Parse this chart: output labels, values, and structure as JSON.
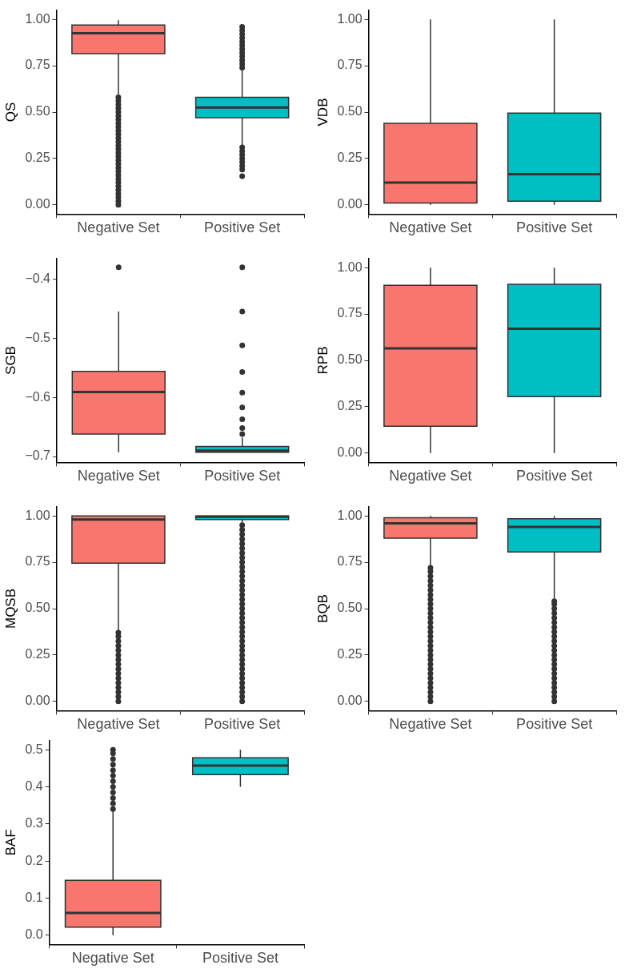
{
  "chart_data": [
    {
      "type": "box",
      "ylabel": "QS",
      "categories": [
        "Negative Set",
        "Positive Set"
      ],
      "colors": [
        "#f8766d",
        "#00bfc4"
      ],
      "ylim": [
        -0.05,
        1.05
      ],
      "yticks": [
        {
          "value": 0,
          "label": "0.00"
        },
        {
          "value": 0.25,
          "label": "0.25"
        },
        {
          "value": 0.5,
          "label": "0.50"
        },
        {
          "value": 0.75,
          "label": "0.75"
        },
        {
          "value": 1,
          "label": "1.00"
        }
      ],
      "grid": false,
      "boxes": [
        {
          "low": 0.59,
          "q1": 0.815,
          "median": 0.925,
          "q3": 0.97,
          "high": 0.995,
          "outliers": [
            0,
            0.02,
            0.04,
            0.06,
            0.08,
            0.1,
            0.12,
            0.14,
            0.16,
            0.18,
            0.2,
            0.22,
            0.24,
            0.26,
            0.28,
            0.3,
            0.32,
            0.34,
            0.36,
            0.38,
            0.4,
            0.42,
            0.44,
            0.46,
            0.48,
            0.5,
            0.52,
            0.54,
            0.56,
            0.58
          ]
        },
        {
          "low": 0.32,
          "q1": 0.47,
          "median": 0.525,
          "q3": 0.58,
          "high": 0.73,
          "outliers": [
            0.155,
            0.19,
            0.21,
            0.23,
            0.25,
            0.27,
            0.29,
            0.31,
            0.74,
            0.76,
            0.78,
            0.8,
            0.82,
            0.84,
            0.86,
            0.88,
            0.9,
            0.92,
            0.94,
            0.96
          ]
        }
      ]
    },
    {
      "type": "box",
      "ylabel": "VDB",
      "categories": [
        "Negative Set",
        "Positive Set"
      ],
      "colors": [
        "#f8766d",
        "#00bfc4"
      ],
      "ylim": [
        -0.05,
        1.05
      ],
      "yticks": [
        {
          "value": 0,
          "label": "0.00"
        },
        {
          "value": 0.25,
          "label": "0.25"
        },
        {
          "value": 0.5,
          "label": "0.50"
        },
        {
          "value": 0.75,
          "label": "0.75"
        },
        {
          "value": 1,
          "label": "1.00"
        }
      ],
      "grid": false,
      "boxes": [
        {
          "low": 0,
          "q1": 0.01,
          "median": 0.12,
          "q3": 0.44,
          "high": 1
        },
        {
          "low": 0,
          "q1": 0.02,
          "median": 0.165,
          "q3": 0.495,
          "high": 1
        }
      ]
    },
    {
      "type": "box",
      "ylabel": "SGB",
      "categories": [
        "Negative Set",
        "Positive Set"
      ],
      "colors": [
        "#f8766d",
        "#00bfc4"
      ],
      "ylim": [
        -0.71,
        -0.365
      ],
      "yticks": [
        {
          "value": -0.7,
          "label": "−0.7"
        },
        {
          "value": -0.6,
          "label": "−0.6"
        },
        {
          "value": -0.5,
          "label": "−0.5"
        },
        {
          "value": -0.4,
          "label": "−0.4"
        }
      ],
      "grid": false,
      "boxes": [
        {
          "low": -0.693,
          "q1": -0.662,
          "median": -0.591,
          "q3": -0.556,
          "high": -0.455,
          "outliers": [
            -0.38
          ]
        },
        {
          "low": -0.693,
          "q1": -0.693,
          "median": -0.69,
          "q3": -0.683,
          "high": -0.668,
          "outliers": [
            -0.662,
            -0.652,
            -0.637,
            -0.617,
            -0.592,
            -0.557,
            -0.512,
            -0.455,
            -0.38
          ]
        }
      ]
    },
    {
      "type": "box",
      "ylabel": "RPB",
      "categories": [
        "Negative Set",
        "Positive Set"
      ],
      "colors": [
        "#f8766d",
        "#00bfc4"
      ],
      "ylim": [
        -0.05,
        1.05
      ],
      "yticks": [
        {
          "value": 0,
          "label": "0.00"
        },
        {
          "value": 0.25,
          "label": "0.25"
        },
        {
          "value": 0.5,
          "label": "0.50"
        },
        {
          "value": 0.75,
          "label": "0.75"
        },
        {
          "value": 1,
          "label": "1.00"
        }
      ],
      "grid": false,
      "boxes": [
        {
          "low": 0,
          "q1": 0.145,
          "median": 0.565,
          "q3": 0.905,
          "high": 1
        },
        {
          "low": 0,
          "q1": 0.305,
          "median": 0.67,
          "q3": 0.91,
          "high": 1
        }
      ]
    },
    {
      "type": "box",
      "ylabel": "MQSB",
      "categories": [
        "Negative Set",
        "Positive Set"
      ],
      "colors": [
        "#f8766d",
        "#00bfc4"
      ],
      "ylim": [
        -0.05,
        1.05
      ],
      "yticks": [
        {
          "value": 0,
          "label": "0.00"
        },
        {
          "value": 0.25,
          "label": "0.25"
        },
        {
          "value": 0.5,
          "label": "0.50"
        },
        {
          "value": 0.75,
          "label": "0.75"
        },
        {
          "value": 1,
          "label": "1.00"
        }
      ],
      "grid": false,
      "boxes": [
        {
          "low": 0.38,
          "q1": 0.745,
          "median": 0.98,
          "q3": 1,
          "high": 1,
          "outliers": [
            0,
            0.025,
            0.05,
            0.075,
            0.1,
            0.125,
            0.15,
            0.175,
            0.2,
            0.225,
            0.25,
            0.275,
            0.3,
            0.325,
            0.35,
            0.37
          ]
        },
        {
          "low": 0.955,
          "q1": 0.98,
          "median": 0.995,
          "q3": 1,
          "high": 1,
          "outliers": [
            0,
            0.025,
            0.05,
            0.075,
            0.1,
            0.125,
            0.15,
            0.175,
            0.2,
            0.225,
            0.25,
            0.275,
            0.3,
            0.325,
            0.35,
            0.375,
            0.4,
            0.425,
            0.45,
            0.475,
            0.5,
            0.525,
            0.55,
            0.575,
            0.6,
            0.625,
            0.65,
            0.675,
            0.7,
            0.725,
            0.75,
            0.775,
            0.8,
            0.825,
            0.85,
            0.875,
            0.9,
            0.925,
            0.95
          ]
        }
      ]
    },
    {
      "type": "box",
      "ylabel": "BQB",
      "categories": [
        "Negative Set",
        "Positive Set"
      ],
      "colors": [
        "#f8766d",
        "#00bfc4"
      ],
      "ylim": [
        -0.05,
        1.05
      ],
      "yticks": [
        {
          "value": 0,
          "label": "0.00"
        },
        {
          "value": 0.25,
          "label": "0.25"
        },
        {
          "value": 0.5,
          "label": "0.50"
        },
        {
          "value": 0.75,
          "label": "0.75"
        },
        {
          "value": 1,
          "label": "1.00"
        }
      ],
      "grid": false,
      "boxes": [
        {
          "low": 0.73,
          "q1": 0.88,
          "median": 0.96,
          "q3": 0.99,
          "high": 1,
          "outliers": [
            0,
            0.025,
            0.05,
            0.075,
            0.1,
            0.125,
            0.15,
            0.175,
            0.2,
            0.225,
            0.25,
            0.275,
            0.3,
            0.325,
            0.35,
            0.375,
            0.4,
            0.425,
            0.45,
            0.475,
            0.5,
            0.525,
            0.55,
            0.575,
            0.6,
            0.625,
            0.65,
            0.675,
            0.7,
            0.72
          ]
        },
        {
          "low": 0.55,
          "q1": 0.805,
          "median": 0.94,
          "q3": 0.985,
          "high": 1,
          "outliers": [
            0,
            0.025,
            0.05,
            0.075,
            0.1,
            0.125,
            0.15,
            0.175,
            0.2,
            0.225,
            0.25,
            0.275,
            0.3,
            0.325,
            0.35,
            0.375,
            0.4,
            0.425,
            0.45,
            0.475,
            0.5,
            0.525,
            0.54
          ]
        }
      ]
    },
    {
      "type": "box",
      "ylabel": "BAF",
      "categories": [
        "Negative Set",
        "Positive Set"
      ],
      "colors": [
        "#f8766d",
        "#00bfc4"
      ],
      "ylim": [
        -0.025,
        0.525
      ],
      "yticks": [
        {
          "value": 0,
          "label": "0.0"
        },
        {
          "value": 0.1,
          "label": "0.1"
        },
        {
          "value": 0.2,
          "label": "0.2"
        },
        {
          "value": 0.3,
          "label": "0.3"
        },
        {
          "value": 0.4,
          "label": "0.4"
        },
        {
          "value": 0.5,
          "label": "0.5"
        }
      ],
      "grid": false,
      "boxes": [
        {
          "low": 0,
          "q1": 0.022,
          "median": 0.06,
          "q3": 0.148,
          "high": 0.335,
          "outliers": [
            0.34,
            0.355,
            0.37,
            0.385,
            0.4,
            0.415,
            0.43,
            0.445,
            0.46,
            0.475,
            0.49,
            0.5
          ]
        },
        {
          "low": 0.4,
          "q1": 0.433,
          "median": 0.457,
          "q3": 0.478,
          "high": 0.5
        }
      ]
    }
  ]
}
